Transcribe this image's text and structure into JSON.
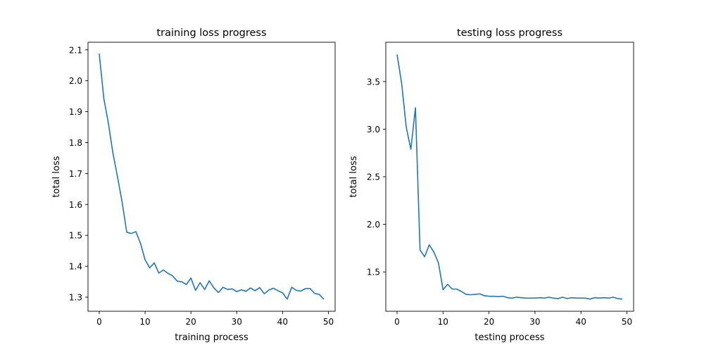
{
  "chart_data": [
    {
      "type": "line",
      "title": "training loss progress",
      "xlabel": "training process",
      "ylabel": "total loss",
      "xlim": [
        -2.45,
        51.45
      ],
      "ylim": [
        1.2545,
        2.1245
      ],
      "xticks": [
        0,
        10,
        20,
        30,
        40,
        50
      ],
      "yticks": [
        1.3,
        1.4,
        1.5,
        1.6,
        1.7,
        1.8,
        1.9,
        2.0,
        2.1
      ],
      "grid": false,
      "series": [
        {
          "color": "#1f77b4",
          "x": [
            0,
            1,
            2,
            3,
            4,
            5,
            6,
            7,
            8,
            9,
            10,
            11,
            12,
            13,
            14,
            15,
            16,
            17,
            18,
            19,
            20,
            21,
            22,
            23,
            24,
            25,
            26,
            27,
            28,
            29,
            30,
            31,
            32,
            33,
            34,
            35,
            36,
            37,
            38,
            39,
            40,
            41,
            42,
            43,
            44,
            45,
            46,
            47,
            48,
            49
          ],
          "y": [
            2.088,
            1.943,
            1.862,
            1.765,
            1.688,
            1.607,
            1.51,
            1.506,
            1.512,
            1.474,
            1.421,
            1.395,
            1.411,
            1.378,
            1.388,
            1.377,
            1.369,
            1.352,
            1.35,
            1.341,
            1.362,
            1.322,
            1.347,
            1.325,
            1.353,
            1.33,
            1.315,
            1.332,
            1.325,
            1.327,
            1.318,
            1.324,
            1.319,
            1.33,
            1.321,
            1.331,
            1.311,
            1.323,
            1.329,
            1.321,
            1.314,
            1.294,
            1.332,
            1.322,
            1.32,
            1.328,
            1.328,
            1.312,
            1.309,
            1.293
          ]
        }
      ]
    },
    {
      "type": "line",
      "title": "testing loss progress",
      "xlabel": "testing process",
      "ylabel": "total loss",
      "xlim": [
        -2.45,
        51.45
      ],
      "ylim": [
        1.087,
        3.913
      ],
      "xticks": [
        0,
        10,
        20,
        30,
        40,
        50
      ],
      "yticks": [
        1.5,
        2.0,
        2.5,
        3.0,
        3.5
      ],
      "grid": false,
      "series": [
        {
          "color": "#1f77b4",
          "x": [
            0,
            1,
            2,
            3,
            4,
            5,
            6,
            7,
            8,
            9,
            10,
            11,
            12,
            13,
            14,
            15,
            16,
            17,
            18,
            19,
            20,
            21,
            22,
            23,
            24,
            25,
            26,
            27,
            28,
            29,
            30,
            31,
            32,
            33,
            34,
            35,
            36,
            37,
            38,
            39,
            40,
            41,
            42,
            43,
            44,
            45,
            46,
            47,
            48,
            49
          ],
          "y": [
            3.785,
            3.48,
            3.02,
            2.79,
            3.225,
            1.73,
            1.66,
            1.785,
            1.71,
            1.595,
            1.315,
            1.37,
            1.32,
            1.32,
            1.295,
            1.265,
            1.26,
            1.265,
            1.27,
            1.25,
            1.245,
            1.245,
            1.24,
            1.245,
            1.23,
            1.225,
            1.235,
            1.23,
            1.225,
            1.225,
            1.225,
            1.23,
            1.225,
            1.235,
            1.225,
            1.22,
            1.235,
            1.22,
            1.23,
            1.225,
            1.225,
            1.225,
            1.215,
            1.23,
            1.225,
            1.23,
            1.225,
            1.235,
            1.22,
            1.215
          ]
        }
      ]
    }
  ]
}
